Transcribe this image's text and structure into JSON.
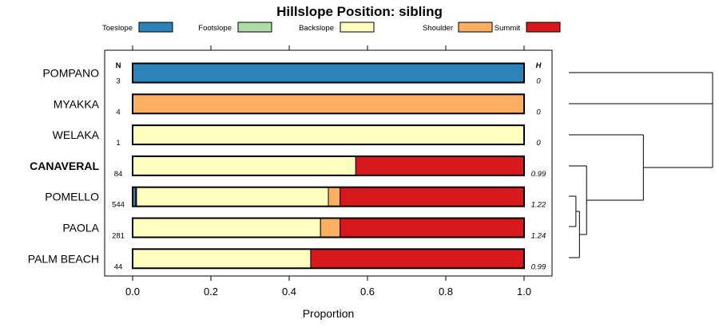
{
  "chart_data": {
    "type": "bar",
    "stacked": true,
    "orientation": "horizontal",
    "title": "Hillslope Position: sibling",
    "xlabel": "Proportion",
    "xlim": [
      0,
      1
    ],
    "x_ticks": [
      "0.0",
      "0.2",
      "0.4",
      "0.6",
      "0.8",
      "1.0"
    ],
    "n_header": "N",
    "h_header": "H",
    "legend_position": "top",
    "series": [
      {
        "name": "Toeslope",
        "color": "#2b83ba"
      },
      {
        "name": "Footslope",
        "color": "#abdda4"
      },
      {
        "name": "Backslope",
        "color": "#ffffbf"
      },
      {
        "name": "Shoulder",
        "color": "#fdae61"
      },
      {
        "name": "Summit",
        "color": "#d7191c"
      }
    ],
    "rows": [
      {
        "label": "POMPANO",
        "bold": false,
        "n": "3",
        "h": "0",
        "values": [
          1.0,
          0,
          0,
          0,
          0
        ]
      },
      {
        "label": "MYAKKA",
        "bold": false,
        "n": "4",
        "h": "0",
        "values": [
          0,
          0,
          0,
          1.0,
          0
        ]
      },
      {
        "label": "WELAKA",
        "bold": false,
        "n": "1",
        "h": "0",
        "values": [
          0,
          0,
          1.0,
          0,
          0
        ]
      },
      {
        "label": "CANAVERAL",
        "bold": true,
        "n": "84",
        "h": "0.99",
        "values": [
          0,
          0,
          0.57,
          0,
          0.43
        ]
      },
      {
        "label": "POMELLO",
        "bold": false,
        "n": "544",
        "h": "1.22",
        "values": [
          0.008,
          0.002,
          0.49,
          0.03,
          0.47
        ]
      },
      {
        "label": "PAOLA",
        "bold": false,
        "n": "281",
        "h": "1.24",
        "values": [
          0,
          0,
          0.48,
          0.05,
          0.47
        ]
      },
      {
        "label": "PALM BEACH",
        "bold": false,
        "n": "44",
        "h": "0.99",
        "values": [
          0,
          0,
          0.455,
          0,
          0.545
        ]
      }
    ],
    "dendrogram": {
      "leaves": [
        "POMPANO",
        "MYAKKA",
        "WELAKA",
        "CANAVERAL",
        "POMELLO",
        "PAOLA",
        "PALM BEACH"
      ],
      "merges": [
        [
          4,
          5,
          0.4
        ],
        [
          7,
          6,
          0.6
        ],
        [
          8,
          3,
          1.0
        ],
        [
          9,
          2,
          4.2
        ],
        [
          0,
          1,
          8.1
        ],
        [
          11,
          10,
          8.1
        ]
      ],
      "max_height": 8.1
    }
  }
}
